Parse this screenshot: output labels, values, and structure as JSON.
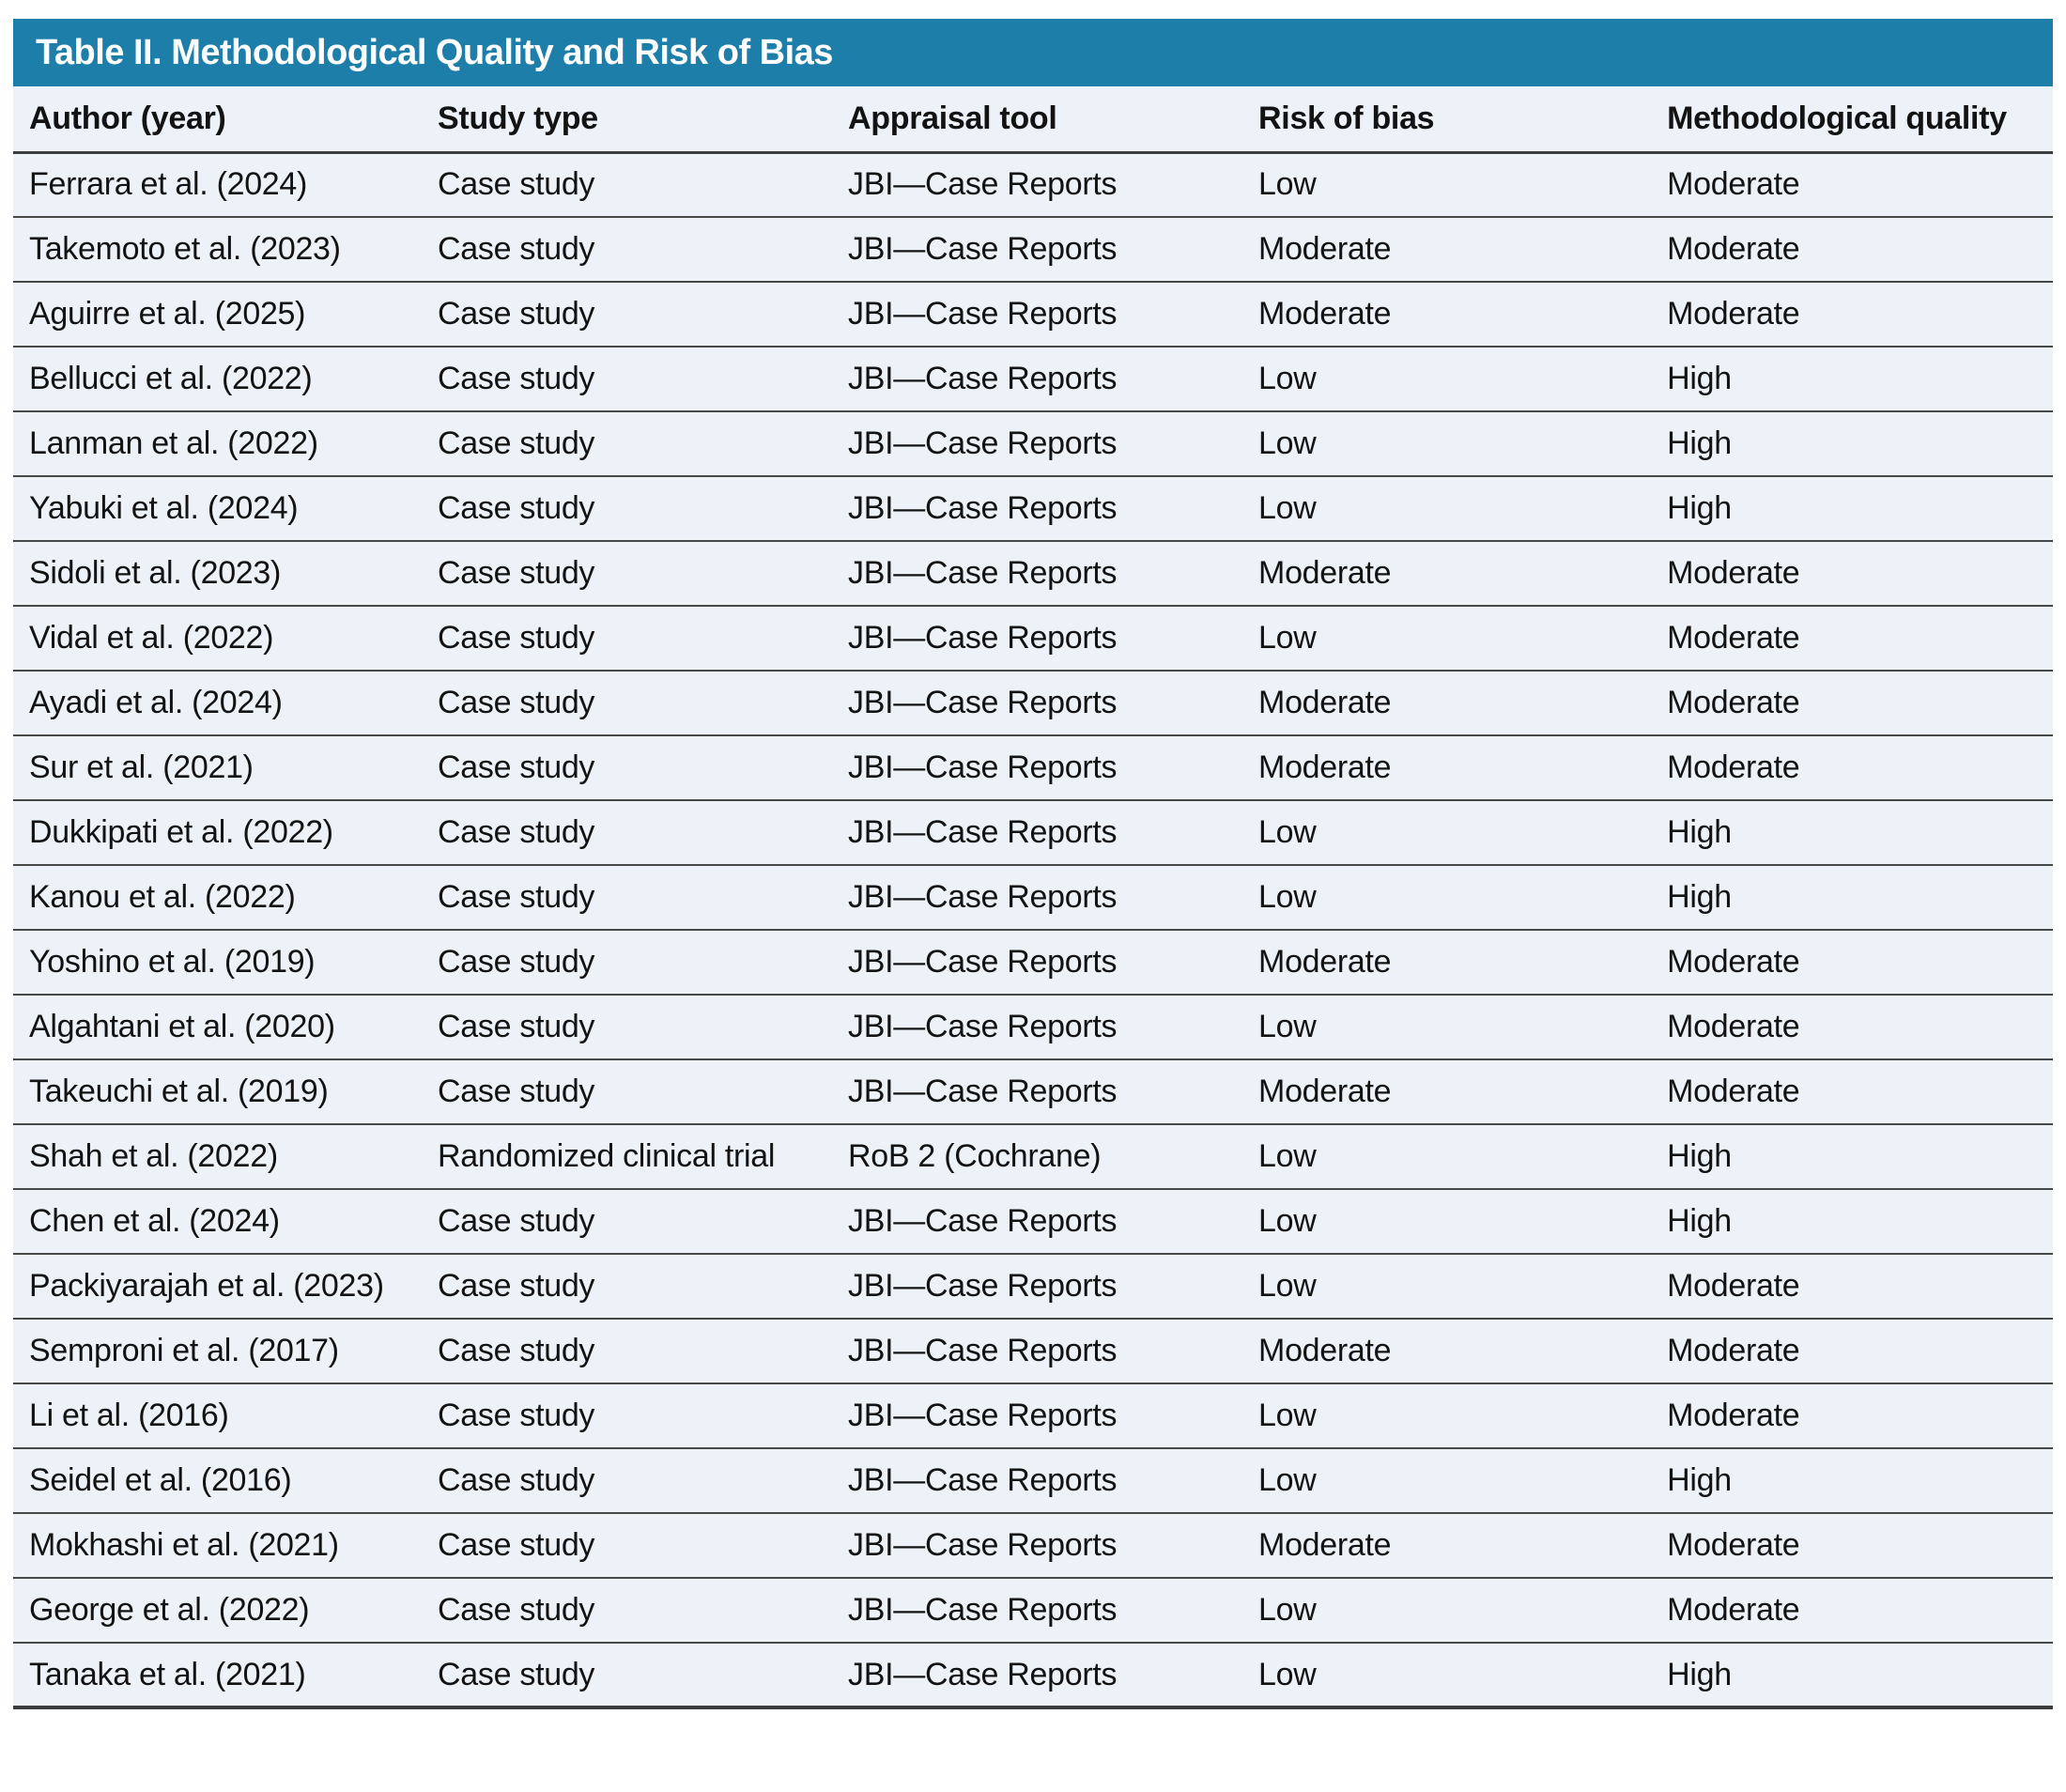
{
  "colors": {
    "header_bar": "#1c7ea9",
    "row_bg": "#edf1f8"
  },
  "table": {
    "title": "Table II. Methodological Quality and Risk of Bias",
    "columns": [
      "Author (year)",
      "Study type",
      "Appraisal tool",
      "Risk of bias",
      "Methodological quality"
    ],
    "rows": [
      {
        "author": "Ferrara et al. (2024)",
        "study_type": "Case study",
        "appraisal_tool": "JBI—Case Reports",
        "risk_of_bias": "Low",
        "methodological_quality": "Moderate"
      },
      {
        "author": "Takemoto et al. (2023)",
        "study_type": "Case study",
        "appraisal_tool": "JBI—Case Reports",
        "risk_of_bias": "Moderate",
        "methodological_quality": "Moderate"
      },
      {
        "author": "Aguirre et al. (2025)",
        "study_type": "Case study",
        "appraisal_tool": "JBI—Case Reports",
        "risk_of_bias": "Moderate",
        "methodological_quality": "Moderate"
      },
      {
        "author": "Bellucci et al. (2022)",
        "study_type": "Case study",
        "appraisal_tool": "JBI—Case Reports",
        "risk_of_bias": "Low",
        "methodological_quality": "High"
      },
      {
        "author": "Lanman et al. (2022)",
        "study_type": "Case study",
        "appraisal_tool": "JBI—Case Reports",
        "risk_of_bias": "Low",
        "methodological_quality": "High"
      },
      {
        "author": "Yabuki et al. (2024)",
        "study_type": "Case study",
        "appraisal_tool": "JBI—Case Reports",
        "risk_of_bias": "Low",
        "methodological_quality": "High"
      },
      {
        "author": "Sidoli et al. (2023)",
        "study_type": "Case study",
        "appraisal_tool": "JBI—Case Reports",
        "risk_of_bias": "Moderate",
        "methodological_quality": "Moderate"
      },
      {
        "author": "Vidal et al. (2022)",
        "study_type": "Case study",
        "appraisal_tool": "JBI—Case Reports",
        "risk_of_bias": "Low",
        "methodological_quality": "Moderate"
      },
      {
        "author": "Ayadi et al. (2024)",
        "study_type": "Case study",
        "appraisal_tool": "JBI—Case Reports",
        "risk_of_bias": "Moderate",
        "methodological_quality": "Moderate"
      },
      {
        "author": "Sur et al. (2021)",
        "study_type": "Case study",
        "appraisal_tool": "JBI—Case Reports",
        "risk_of_bias": "Moderate",
        "methodological_quality": "Moderate"
      },
      {
        "author": "Dukkipati et al. (2022)",
        "study_type": "Case study",
        "appraisal_tool": "JBI—Case Reports",
        "risk_of_bias": "Low",
        "methodological_quality": "High"
      },
      {
        "author": "Kanou et al. (2022)",
        "study_type": "Case study",
        "appraisal_tool": "JBI—Case Reports",
        "risk_of_bias": "Low",
        "methodological_quality": "High"
      },
      {
        "author": "Yoshino et al. (2019)",
        "study_type": "Case study",
        "appraisal_tool": "JBI—Case Reports",
        "risk_of_bias": "Moderate",
        "methodological_quality": "Moderate"
      },
      {
        "author": "Algahtani et al. (2020)",
        "study_type": "Case study",
        "appraisal_tool": "JBI—Case Reports",
        "risk_of_bias": "Low",
        "methodological_quality": "Moderate"
      },
      {
        "author": "Takeuchi et al. (2019)",
        "study_type": "Case study",
        "appraisal_tool": "JBI—Case Reports",
        "risk_of_bias": "Moderate",
        "methodological_quality": "Moderate"
      },
      {
        "author": "Shah et al. (2022)",
        "study_type": "Randomized clinical trial",
        "appraisal_tool": "RoB 2 (Cochrane)",
        "risk_of_bias": "Low",
        "methodological_quality": "High"
      },
      {
        "author": "Chen et al. (2024)",
        "study_type": "Case study",
        "appraisal_tool": "JBI—Case Reports",
        "risk_of_bias": "Low",
        "methodological_quality": "High"
      },
      {
        "author": "Packiyarajah et al. (2023)",
        "study_type": "Case study",
        "appraisal_tool": "JBI—Case Reports",
        "risk_of_bias": "Low",
        "methodological_quality": "Moderate"
      },
      {
        "author": "Semproni et al. (2017)",
        "study_type": "Case study",
        "appraisal_tool": "JBI—Case Reports",
        "risk_of_bias": "Moderate",
        "methodological_quality": "Moderate"
      },
      {
        "author": "Li et al. (2016)",
        "study_type": "Case study",
        "appraisal_tool": "JBI—Case Reports",
        "risk_of_bias": "Low",
        "methodological_quality": "Moderate"
      },
      {
        "author": "Seidel et al. (2016)",
        "study_type": "Case study",
        "appraisal_tool": "JBI—Case Reports",
        "risk_of_bias": "Low",
        "methodological_quality": "High"
      },
      {
        "author": "Mokhashi et al. (2021)",
        "study_type": "Case study",
        "appraisal_tool": "JBI—Case Reports",
        "risk_of_bias": "Moderate",
        "methodological_quality": "Moderate"
      },
      {
        "author": "George et al. (2022)",
        "study_type": "Case study",
        "appraisal_tool": "JBI—Case Reports",
        "risk_of_bias": "Low",
        "methodological_quality": "Moderate"
      },
      {
        "author": "Tanaka et al. (2021)",
        "study_type": "Case study",
        "appraisal_tool": "JBI—Case Reports",
        "risk_of_bias": "Low",
        "methodological_quality": "High"
      }
    ]
  }
}
